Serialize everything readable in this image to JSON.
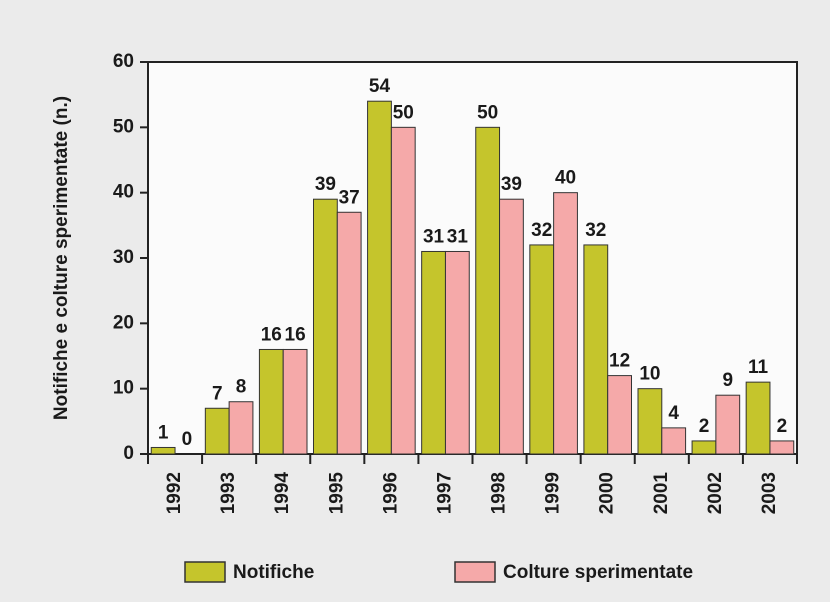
{
  "chart_data": {
    "type": "bar",
    "ylabel": "Notifiche e colture sperimentate (n.)",
    "categories": [
      "1992",
      "1993",
      "1994",
      "1995",
      "1996",
      "1997",
      "1998",
      "1999",
      "2000",
      "2001",
      "2002",
      "2003"
    ],
    "series": [
      {
        "name": "Notifiche",
        "color": "#c5c52c",
        "values": [
          1,
          7,
          16,
          39,
          54,
          31,
          50,
          32,
          32,
          10,
          2,
          11
        ]
      },
      {
        "name": "Colture sperimentate",
        "color": "#f5a9a9",
        "values": [
          0,
          8,
          16,
          37,
          50,
          31,
          39,
          40,
          12,
          4,
          9,
          2
        ]
      }
    ],
    "ylim": [
      0,
      60
    ],
    "yticks": [
      0,
      10,
      20,
      30,
      40,
      50,
      60
    ],
    "legend": "bottom"
  }
}
